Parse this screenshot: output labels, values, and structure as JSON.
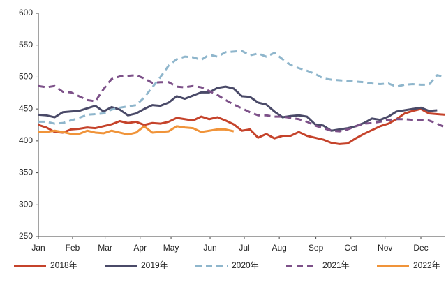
{
  "chart_data": {
    "type": "line",
    "xlim": [
      0,
      50
    ],
    "xticks": [
      {
        "value": 0,
        "label": "Jan"
      },
      {
        "value": 4.2,
        "label": "Feb"
      },
      {
        "value": 8.2,
        "label": "Mar"
      },
      {
        "value": 12.5,
        "label": "Apr"
      },
      {
        "value": 16.3,
        "label": "May"
      },
      {
        "value": 21.1,
        "label": "Jun"
      },
      {
        "value": 25.3,
        "label": "Jul"
      },
      {
        "value": 29.6,
        "label": "Aug"
      },
      {
        "value": 34.1,
        "label": "Sep"
      },
      {
        "value": 38.4,
        "label": "Oct"
      },
      {
        "value": 42.6,
        "label": "Nov"
      },
      {
        "value": 47.0,
        "label": "Dec"
      }
    ],
    "x": [
      0,
      1,
      2,
      3,
      4,
      5,
      6,
      7,
      8,
      9,
      10,
      11,
      12,
      13,
      14,
      15,
      16,
      17,
      18,
      19,
      20,
      21,
      22,
      23,
      24,
      25,
      26,
      27,
      28,
      29,
      30,
      31,
      32,
      33,
      34,
      35,
      36,
      37,
      38,
      39,
      40,
      41,
      42,
      43,
      44,
      45,
      46,
      47,
      48,
      49,
      50
    ],
    "ylim": [
      250,
      600
    ],
    "yticks": [
      250,
      300,
      350,
      400,
      450,
      500,
      550,
      600
    ],
    "legend": "bottom",
    "series": [
      {
        "name": "2018年",
        "color": "#c5432b",
        "dashed": false,
        "values": [
          425,
          421,
          414,
          413,
          418,
          419,
          421,
          420,
          423,
          426,
          431,
          428,
          430,
          425,
          428,
          427,
          430,
          436,
          434,
          432,
          438,
          434,
          437,
          432,
          426,
          416,
          418,
          405,
          411,
          404,
          408,
          408,
          414,
          408,
          405,
          402,
          397,
          395,
          396,
          404,
          411,
          417,
          423,
          427,
          434,
          443,
          447,
          450,
          443,
          442,
          441
        ]
      },
      {
        "name": "2019年",
        "color": "#4a4a68",
        "dashed": false,
        "values": [
          441,
          440,
          437,
          445,
          446,
          447,
          451,
          455,
          446,
          453,
          449,
          440,
          443,
          450,
          456,
          455,
          460,
          470,
          466,
          471,
          476,
          476,
          483,
          485,
          482,
          470,
          469,
          460,
          457,
          446,
          437,
          439,
          440,
          438,
          426,
          424,
          416,
          418,
          420,
          423,
          428,
          435,
          433,
          438,
          446,
          448,
          450,
          452,
          447,
          448,
          null
        ]
      },
      {
        "name": "2020年",
        "color": "#8fb6cc",
        "dashed": true,
        "values": [
          430,
          430,
          427,
          428,
          432,
          436,
          441,
          442,
          443,
          449,
          452,
          454,
          456,
          468,
          484,
          500,
          518,
          528,
          532,
          531,
          527,
          535,
          532,
          539,
          540,
          541,
          534,
          537,
          532,
          538,
          528,
          519,
          514,
          510,
          505,
          498,
          496,
          495,
          494,
          493,
          492,
          490,
          489,
          490,
          485,
          488,
          489,
          488,
          488,
          503,
          500
        ]
      },
      {
        "name": "2021年",
        "color": "#7d5189",
        "dashed": true,
        "values": [
          486,
          484,
          486,
          477,
          476,
          470,
          464,
          462,
          481,
          497,
          501,
          502,
          503,
          498,
          491,
          492,
          492,
          485,
          484,
          486,
          484,
          478,
          472,
          464,
          457,
          451,
          445,
          440,
          440,
          438,
          438,
          436,
          434,
          430,
          424,
          420,
          416,
          415,
          418,
          423,
          427,
          428,
          430,
          433,
          434,
          434,
          433,
          433,
          432,
          427,
          421
        ]
      },
      {
        "name": "2022年",
        "color": "#f0943a",
        "dashed": false,
        "values": [
          414,
          414,
          416,
          414,
          411,
          411,
          416,
          413,
          412,
          416,
          413,
          410,
          413,
          423,
          413,
          414,
          415,
          423,
          421,
          420,
          414,
          416,
          418,
          418,
          415,
          null,
          null,
          null,
          null,
          null,
          null,
          null,
          null,
          null,
          null,
          null,
          null,
          null,
          null,
          null,
          null,
          null,
          null,
          null,
          null,
          null,
          null,
          null,
          null,
          null,
          null
        ]
      }
    ]
  }
}
